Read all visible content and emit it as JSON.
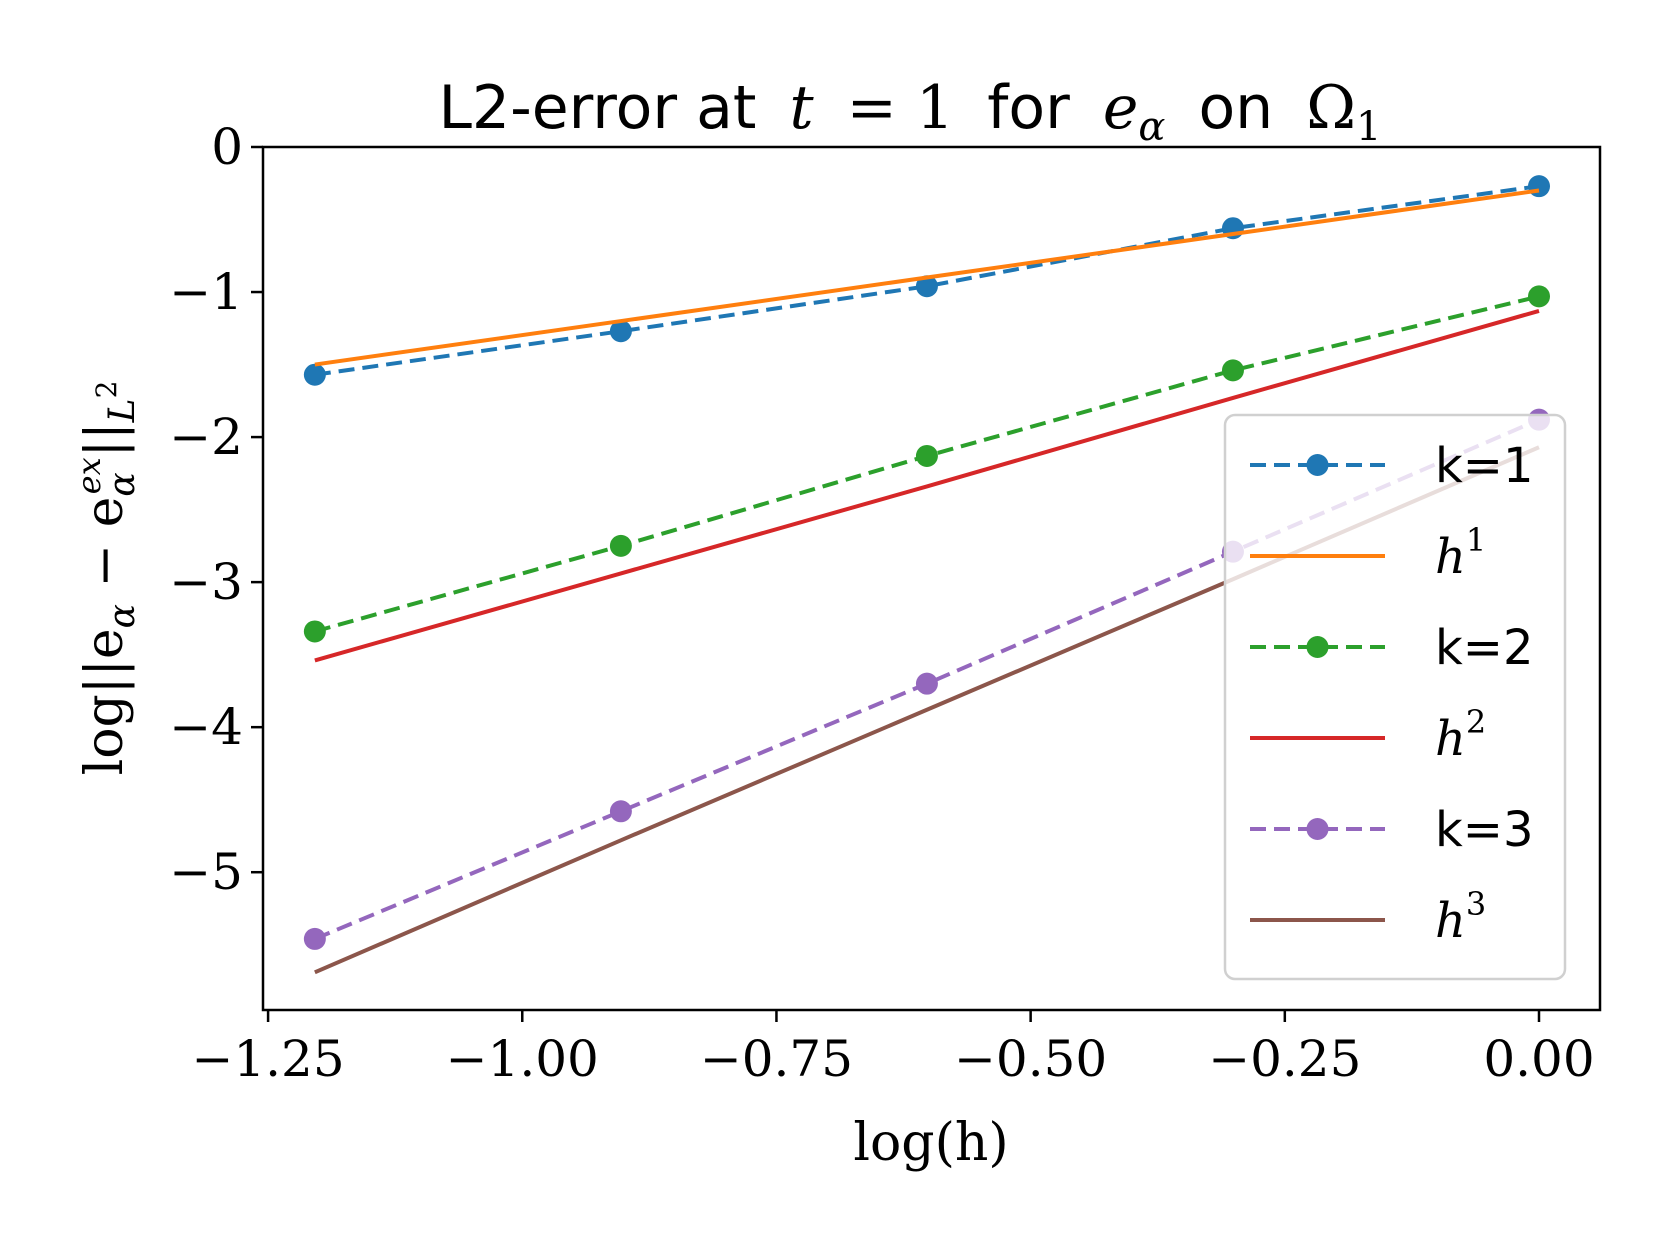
{
  "chart_data": {
    "type": "line",
    "title_parts": [
      "L2-error at",
      "t",
      "= 1",
      "for",
      "e",
      "α",
      "on",
      "Ω",
      "1"
    ],
    "xlabel": "log(h)",
    "ylabel_parts": [
      "log||e",
      "α",
      " − e",
      "α",
      "ex",
      "||",
      "L",
      "2"
    ],
    "xlim": [
      -1.255,
      0.06
    ],
    "ylim": [
      -5.95,
      0
    ],
    "x_ticks": [
      -1.25,
      -1.0,
      -0.75,
      -0.5,
      -0.25,
      0.0
    ],
    "x_tick_labels": [
      "−1.25",
      "−1.00",
      "−0.75",
      "−0.50",
      "−0.25",
      "0.00"
    ],
    "y_ticks": [
      0,
      -1,
      -2,
      -3,
      -4,
      -5
    ],
    "y_tick_labels": [
      "0",
      "−1",
      "−2",
      "−3",
      "−4",
      "−5"
    ],
    "x": [
      -1.204,
      -0.903,
      -0.602,
      -0.301,
      0.0
    ],
    "series": [
      {
        "name": "k=1",
        "style": "dashed-marker",
        "color": "#1f77b4",
        "values": [
          -1.57,
          -1.27,
          -0.96,
          -0.56,
          -0.27
        ]
      },
      {
        "name": "h",
        "sup": "1",
        "style": "solid",
        "color": "#ff7f0e",
        "values": [
          -1.5,
          -1.2,
          -0.9,
          -0.6,
          -0.3
        ]
      },
      {
        "name": "k=2",
        "style": "dashed-marker",
        "color": "#2ca02c",
        "values": [
          -3.34,
          -2.75,
          -2.13,
          -1.54,
          -1.03
        ]
      },
      {
        "name": "h",
        "sup": "2",
        "style": "solid",
        "color": "#d62728",
        "values": [
          -3.54,
          -2.94,
          -2.34,
          -1.73,
          -1.13
        ]
      },
      {
        "name": "k=3",
        "style": "dashed-marker",
        "color": "#9467bd",
        "values": [
          -5.46,
          -4.58,
          -3.7,
          -2.79,
          -1.88
        ]
      },
      {
        "name": "h",
        "sup": "3",
        "style": "solid",
        "color": "#8c564b",
        "values": [
          -5.69,
          -4.78,
          -3.88,
          -2.98,
          -2.07
        ]
      }
    ],
    "legend_position": "lower-right",
    "grid": false
  }
}
